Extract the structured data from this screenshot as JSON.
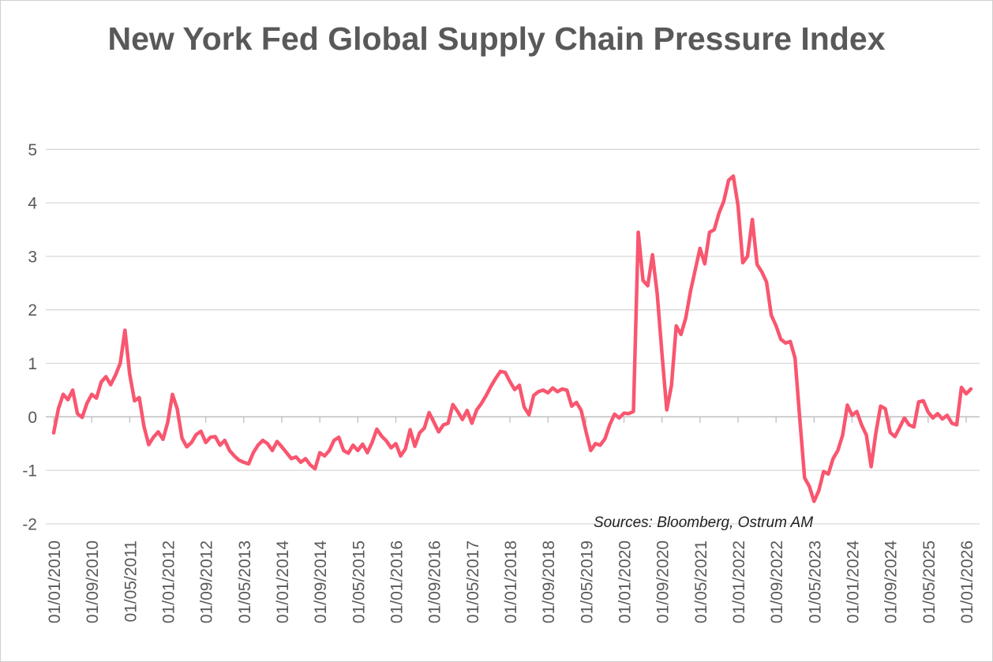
{
  "chart_data": {
    "type": "line",
    "title": "New York Fed Global Supply Chain Pressure Index",
    "source_note": "Sources: Bloomberg, Ostrum AM",
    "xlabel": "",
    "ylabel": "",
    "ylim": [
      -2,
      5
    ],
    "y_ticks": [
      5,
      4,
      3,
      2,
      1,
      0,
      -1,
      -2
    ],
    "grid": "horizontal",
    "legend": "none",
    "frequency": "monthly",
    "start_date": "01/01/2010",
    "end_date": "01/02/2026",
    "date_format": "dd/mm/yyyy",
    "x_tick_labels": [
      "01/01/2010",
      "01/09/2010",
      "01/05/2011",
      "01/01/2012",
      "01/09/2012",
      "01/05/2013",
      "01/01/2014",
      "01/09/2014",
      "01/05/2015",
      "01/01/2016",
      "01/09/2016",
      "01/05/2017",
      "01/01/2018",
      "01/09/2018",
      "01/05/2019",
      "01/01/2020",
      "01/09/2020",
      "01/05/2021",
      "01/01/2022",
      "01/09/2022",
      "01/05/2023",
      "01/01/2024",
      "01/09/2024",
      "01/05/2025",
      "01/01/2026"
    ],
    "x_tick_interval_months": 8,
    "values": [
      -0.3,
      0.15,
      0.42,
      0.32,
      0.5,
      0.06,
      -0.01,
      0.25,
      0.42,
      0.35,
      0.65,
      0.75,
      0.6,
      0.78,
      1.0,
      1.62,
      0.8,
      0.3,
      0.36,
      -0.18,
      -0.52,
      -0.38,
      -0.28,
      -0.42,
      -0.1,
      0.42,
      0.15,
      -0.4,
      -0.56,
      -0.48,
      -0.33,
      -0.27,
      -0.48,
      -0.38,
      -0.37,
      -0.53,
      -0.44,
      -0.63,
      -0.73,
      -0.81,
      -0.85,
      -0.88,
      -0.67,
      -0.53,
      -0.44,
      -0.5,
      -0.63,
      -0.46,
      -0.56,
      -0.67,
      -0.78,
      -0.75,
      -0.85,
      -0.78,
      -0.9,
      -0.97,
      -0.67,
      -0.73,
      -0.63,
      -0.44,
      -0.38,
      -0.63,
      -0.68,
      -0.53,
      -0.63,
      -0.51,
      -0.67,
      -0.48,
      -0.23,
      -0.36,
      -0.45,
      -0.58,
      -0.5,
      -0.73,
      -0.6,
      -0.24,
      -0.55,
      -0.3,
      -0.21,
      0.08,
      -0.1,
      -0.28,
      -0.15,
      -0.12,
      0.23,
      0.1,
      -0.05,
      0.12,
      -0.12,
      0.13,
      0.25,
      0.4,
      0.57,
      0.72,
      0.85,
      0.83,
      0.66,
      0.51,
      0.59,
      0.18,
      0.04,
      0.4,
      0.47,
      0.5,
      0.45,
      0.54,
      0.47,
      0.52,
      0.5,
      0.2,
      0.27,
      0.12,
      -0.27,
      -0.63,
      -0.5,
      -0.53,
      -0.41,
      -0.15,
      0.05,
      -0.02,
      0.07,
      0.06,
      0.1,
      3.45,
      2.55,
      2.45,
      3.03,
      2.3,
      1.17,
      0.13,
      0.59,
      1.7,
      1.54,
      1.85,
      2.35,
      2.75,
      3.15,
      2.86,
      3.45,
      3.5,
      3.81,
      4.03,
      4.42,
      4.5,
      3.95,
      2.88,
      3.0,
      3.69,
      2.85,
      2.71,
      2.52,
      1.9,
      1.7,
      1.45,
      1.38,
      1.41,
      1.1,
      -0.05,
      -1.14,
      -1.3,
      -1.58,
      -1.38,
      -1.02,
      -1.07,
      -0.78,
      -0.63,
      -0.34,
      0.22,
      0.03,
      0.1,
      -0.15,
      -0.34,
      -0.93,
      -0.3,
      0.2,
      0.15,
      -0.29,
      -0.37,
      -0.2,
      -0.02,
      -0.15,
      -0.19,
      0.28,
      0.3,
      0.09,
      -0.02,
      0.06,
      -0.04,
      0.03,
      -0.12,
      -0.15,
      0.55,
      0.43,
      0.52
    ],
    "colors": {
      "line": "#F9566F",
      "gridline": "#D9D9D9",
      "axis": "#BFBFBF",
      "axis_text": "#595959",
      "title_text": "#595959",
      "source_text": "#1F1F1F",
      "background": "#FFFFFF",
      "border": "#CFCFCF"
    }
  }
}
